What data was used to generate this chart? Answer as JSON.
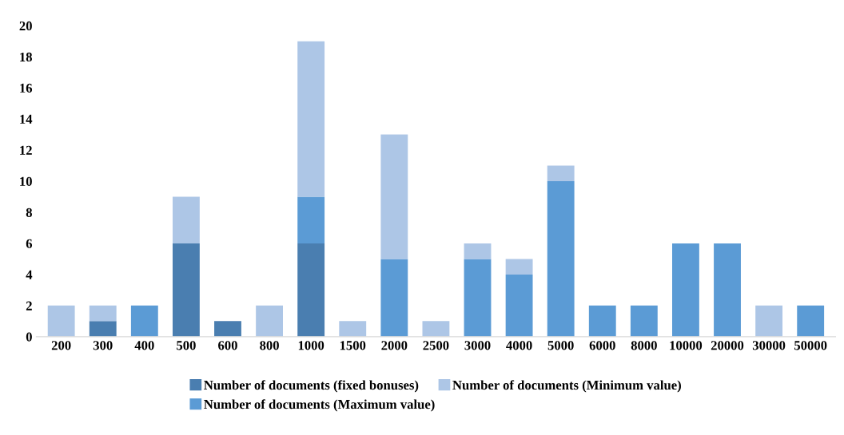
{
  "chart_data": {
    "type": "bar",
    "stacked": true,
    "categories": [
      "200",
      "300",
      "400",
      "500",
      "600",
      "800",
      "1000",
      "1500",
      "2000",
      "2500",
      "3000",
      "4000",
      "5000",
      "6000",
      "8000",
      "10000",
      "20000",
      "30000",
      "50000"
    ],
    "series": [
      {
        "name": "Number of documents (fixed bonuses)",
        "color": "#4a7eb0",
        "values": [
          0,
          1,
          0,
          6,
          1,
          0,
          6,
          0,
          0,
          0,
          0,
          0,
          0,
          0,
          0,
          0,
          0,
          0,
          0
        ]
      },
      {
        "name": "Number of documents (Maximum value)",
        "color": "#5b9bd5",
        "values": [
          0,
          0,
          2,
          0,
          0,
          0,
          3,
          0,
          5,
          0,
          5,
          4,
          10,
          2,
          2,
          6,
          6,
          0,
          2
        ]
      },
      {
        "name": "Number of documents (Minimum value)",
        "color": "#adc6e6",
        "values": [
          2,
          1,
          0,
          3,
          0,
          2,
          10,
          1,
          8,
          1,
          1,
          1,
          1,
          0,
          0,
          0,
          0,
          2,
          0
        ]
      }
    ],
    "ylim": [
      0,
      20
    ],
    "yticks": [
      0,
      2,
      4,
      6,
      8,
      10,
      12,
      14,
      16,
      18,
      20
    ],
    "grid": false,
    "legend": "bottom"
  }
}
